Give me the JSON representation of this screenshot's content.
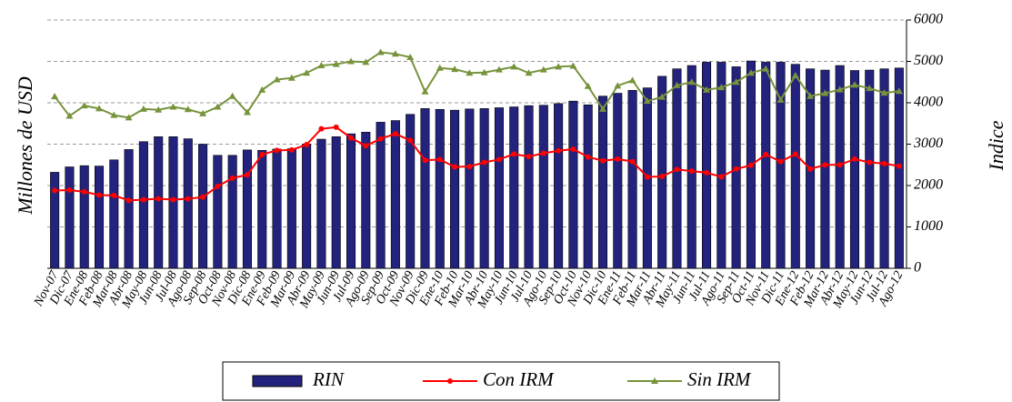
{
  "chart_data": {
    "type": "bar",
    "y_label": "Millones de USD",
    "y2_label": "Indice",
    "categories": [
      "Nov-07",
      "Dic-07",
      "Ene-08",
      "Feb-08",
      "Mar-08",
      "Abr-08",
      "May-08",
      "Jun-08",
      "Jul-08",
      "Ago-08",
      "Sep-08",
      "Oct-08",
      "Nov-08",
      "Dic-08",
      "Ene-09",
      "Feb-09",
      "Mar-09",
      "Abr-09",
      "May-09",
      "Jun-09",
      "Jul-09",
      "Ago-09",
      "Sep-09",
      "Oct-09",
      "Nov-09",
      "Dic-09",
      "Ene-10",
      "Feb-10",
      "Mar-10",
      "Abr-10",
      "May-10",
      "Jun-10",
      "Jul-10",
      "Ago-10",
      "Sep-10",
      "Oct-10",
      "Nov-10",
      "Dic-10",
      "Ene-11",
      "Feb-11",
      "Mar-11",
      "Abr-11",
      "May-11",
      "Jun-11",
      "Jul-11",
      "Ago-11",
      "Sep-11",
      "Oct-11",
      "Nov-11",
      "Dic-11",
      "Ene-12",
      "Feb-12",
      "Mar-12",
      "Abr-12",
      "May-12",
      "Jun-12",
      "Jul-12",
      "Ago-12"
    ],
    "series": [
      {
        "name": "RIN",
        "type": "bar",
        "color": "#23237e",
        "values": [
          2320,
          2450,
          2480,
          2470,
          2620,
          2870,
          3060,
          3180,
          3180,
          3130,
          3000,
          2730,
          2730,
          2860,
          2850,
          2880,
          2890,
          3000,
          3120,
          3180,
          3250,
          3290,
          3530,
          3570,
          3720,
          3860,
          3840,
          3820,
          3850,
          3860,
          3880,
          3900,
          3930,
          3940,
          3980,
          4040,
          3950,
          4160,
          4230,
          4300,
          4360,
          4640,
          4820,
          4900,
          4980,
          4980,
          4870,
          5010,
          4980,
          4980,
          4930,
          4820,
          4790,
          4900,
          4780,
          4790,
          4820,
          4840
        ]
      },
      {
        "name": "Con IRM",
        "type": "line",
        "marker": "circle",
        "color": "#ff0000",
        "values": [
          1880,
          1890,
          1850,
          1770,
          1760,
          1640,
          1660,
          1680,
          1660,
          1680,
          1720,
          1980,
          2180,
          2260,
          2750,
          2850,
          2860,
          2990,
          3370,
          3410,
          3150,
          2960,
          3130,
          3250,
          3090,
          2610,
          2630,
          2450,
          2460,
          2560,
          2630,
          2760,
          2700,
          2780,
          2840,
          2880,
          2690,
          2600,
          2640,
          2580,
          2210,
          2220,
          2390,
          2350,
          2310,
          2210,
          2400,
          2490,
          2750,
          2580,
          2760,
          2400,
          2500,
          2500,
          2640,
          2560,
          2530,
          2470
        ]
      },
      {
        "name": "Sin IRM",
        "type": "line",
        "marker": "triangle",
        "color": "#77933c",
        "values": [
          4150,
          3680,
          3930,
          3860,
          3700,
          3640,
          3850,
          3830,
          3900,
          3840,
          3740,
          3900,
          4160,
          3770,
          4310,
          4560,
          4600,
          4720,
          4900,
          4930,
          5000,
          4980,
          5220,
          5180,
          5100,
          4270,
          4840,
          4810,
          4720,
          4730,
          4800,
          4870,
          4720,
          4800,
          4870,
          4890,
          4400,
          3850,
          4410,
          4540,
          4040,
          4140,
          4420,
          4500,
          4310,
          4370,
          4500,
          4720,
          4820,
          4070,
          4660,
          4160,
          4230,
          4320,
          4430,
          4350,
          4240,
          4280
        ]
      }
    ],
    "ylim": [
      0,
      6000
    ],
    "yticks": [
      0,
      1000,
      2000,
      3000,
      4000,
      5000,
      6000
    ],
    "grid": true,
    "legend": "bottom"
  }
}
